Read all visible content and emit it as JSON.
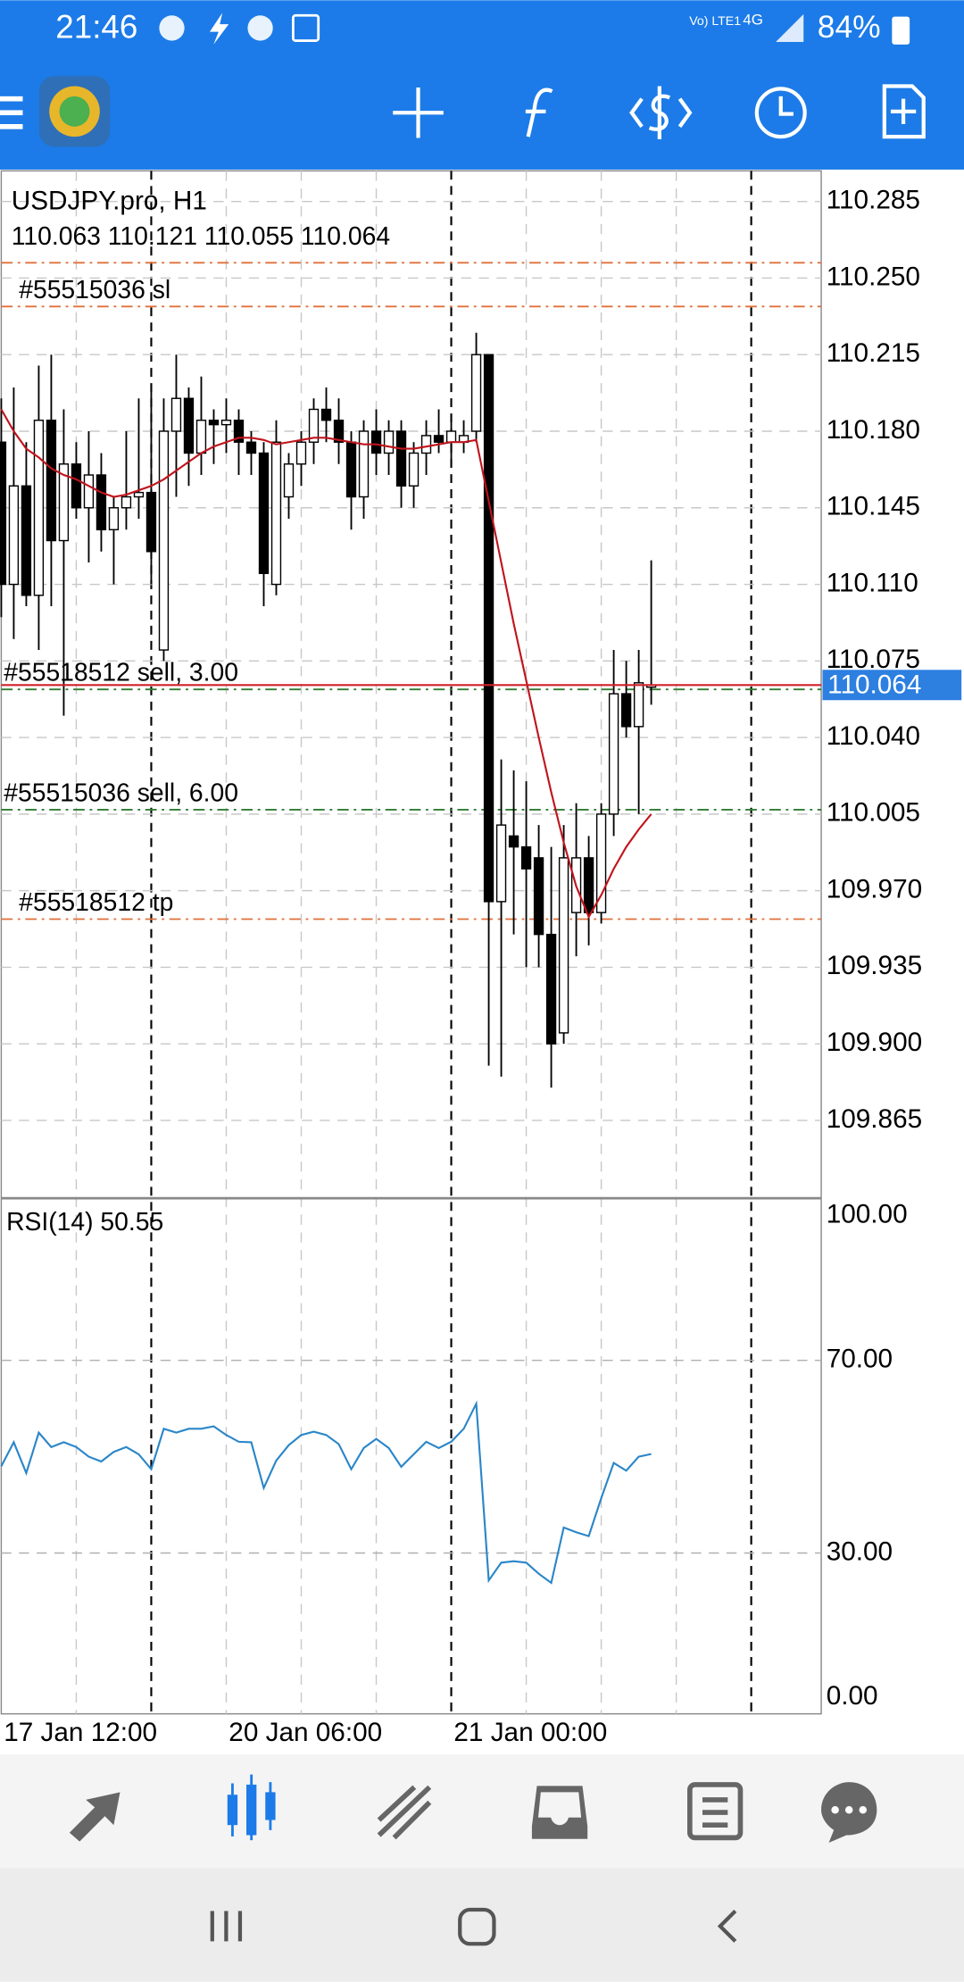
{
  "status_bar": {
    "time": "21:46",
    "carrier": "Vo) LTE1",
    "network": "4G",
    "battery": "84%"
  },
  "chart_data": [
    {
      "type": "candlestick",
      "title": "USDJPY.pro, H1",
      "subtitle": "110.063 110.121 110.055 110.064",
      "open": [
        110.175,
        110.11,
        110.155,
        110.105,
        110.185,
        110.13,
        110.165,
        110.145,
        110.16,
        110.135,
        110.145,
        110.15,
        110.152,
        110.08,
        110.18,
        110.195,
        110.17,
        110.185,
        110.183,
        110.185,
        110.175,
        110.17,
        110.11,
        110.15,
        110.165,
        110.175,
        110.19,
        110.185,
        110.175,
        110.15,
        110.18,
        110.17,
        110.18,
        110.155,
        110.17,
        110.178,
        110.175,
        110.175,
        110.18,
        110.215,
        109.965,
        109.995,
        109.99,
        109.985,
        109.95,
        109.905,
        109.96,
        109.985,
        109.96,
        110.005,
        110.06,
        110.045,
        110.063
      ],
      "high": [
        110.195,
        110.2,
        110.175,
        110.21,
        110.215,
        110.19,
        110.175,
        110.18,
        110.17,
        110.15,
        110.18,
        110.195,
        110.2,
        110.195,
        110.215,
        110.2,
        110.205,
        110.19,
        110.195,
        110.19,
        110.18,
        110.175,
        110.185,
        110.17,
        110.18,
        110.195,
        110.2,
        110.195,
        110.18,
        110.185,
        110.19,
        110.185,
        110.185,
        110.175,
        110.185,
        110.19,
        110.185,
        110.185,
        110.225,
        110.215,
        110.03,
        110.025,
        110.02,
        110.0,
        109.99,
        110.0,
        110.01,
        109.995,
        110.01,
        110.08,
        110.075,
        110.08,
        110.121
      ],
      "low": [
        110.095,
        110.085,
        110.1,
        110.08,
        110.1,
        110.05,
        110.14,
        110.12,
        110.125,
        110.11,
        110.135,
        110.14,
        110.11,
        110.075,
        110.15,
        110.155,
        110.16,
        110.165,
        110.17,
        110.16,
        110.16,
        110.1,
        110.105,
        110.14,
        110.155,
        110.165,
        110.175,
        110.165,
        110.135,
        110.14,
        110.16,
        110.16,
        110.145,
        110.145,
        110.16,
        110.17,
        110.165,
        110.17,
        110.175,
        109.89,
        109.885,
        109.95,
        109.935,
        109.935,
        109.88,
        109.9,
        109.94,
        109.945,
        109.955,
        109.995,
        110.04,
        110.005,
        110.055
      ],
      "close": [
        110.11,
        110.155,
        110.105,
        110.185,
        110.13,
        110.165,
        110.145,
        110.16,
        110.135,
        110.145,
        110.15,
        110.152,
        110.125,
        110.18,
        110.195,
        110.17,
        110.185,
        110.183,
        110.185,
        110.175,
        110.17,
        110.115,
        110.175,
        110.165,
        110.175,
        110.19,
        110.185,
        110.175,
        110.15,
        110.18,
        110.17,
        110.18,
        110.155,
        110.17,
        110.178,
        110.175,
        110.18,
        110.178,
        110.215,
        109.965,
        110.0,
        109.99,
        109.98,
        109.95,
        109.9,
        109.985,
        109.985,
        109.96,
        110.005,
        110.06,
        110.045,
        110.065,
        110.064
      ],
      "colors": {
        "up": "#ffffff",
        "down": "#000000",
        "wick": "#000000"
      },
      "moving_average": {
        "color": "#c0141c",
        "values": [
          110.19,
          110.18,
          110.172,
          110.168,
          110.163,
          110.16,
          110.158,
          110.155,
          110.152,
          110.15,
          110.151,
          110.153,
          110.155,
          110.158,
          110.162,
          110.166,
          110.17,
          110.173,
          110.175,
          110.177,
          110.177,
          110.176,
          110.174,
          110.175,
          110.176,
          110.177,
          110.177,
          110.176,
          110.175,
          110.174,
          110.174,
          110.173,
          110.172,
          110.172,
          110.173,
          110.174,
          110.175,
          110.175,
          110.176,
          110.148,
          110.12,
          110.092,
          110.066,
          110.04,
          110.015,
          109.992,
          109.972,
          109.958,
          109.968,
          109.98,
          109.99,
          109.998,
          110.005
        ]
      },
      "bid": 110.064,
      "bid_color": "#d0202a",
      "order_lines": [
        {
          "value": 110.257,
          "color": "#e0703a"
        },
        {
          "value": 110.237,
          "label": "#55515036 sl",
          "color": "#e0703a"
        },
        {
          "value": 110.062,
          "label": "#55518512 sell, 3.00",
          "color": "#2e7d32"
        },
        {
          "value": 110.007,
          "label": "#55515036 sell, 6.00",
          "color": "#2e7d32"
        },
        {
          "value": 109.957,
          "label": "#55518512 tp",
          "color": "#e0703a"
        }
      ],
      "xlim": [
        0,
        65.6
      ],
      "vgrid": [
        6,
        18,
        24,
        30,
        42,
        48,
        54
      ],
      "period_separators": [
        12,
        36,
        60
      ],
      "ylim": [
        109.83,
        110.299
      ],
      "yticks": [
        110.285,
        {
          "value": 110.25,
          "label": "110.250"
        },
        110.215,
        {
          "value": 110.18,
          "label": "110.180"
        },
        110.145,
        {
          "value": 110.11,
          "label": "110.110"
        },
        110.075,
        {
          "value": 110.04,
          "label": "110.040"
        },
        110.005,
        {
          "value": 109.97,
          "label": "109.970"
        },
        109.935,
        {
          "value": 109.9,
          "label": "109.900"
        },
        109.865
      ],
      "grid": true
    },
    {
      "type": "line",
      "title": "RSI(14) 50.55",
      "color": "#2a86c8",
      "values": [
        48,
        53,
        46.6,
        55,
        52,
        53,
        52,
        50,
        49,
        51,
        52,
        50.5,
        47.4,
        55.8,
        55,
        55.8,
        55.8,
        56.3,
        54.5,
        53.1,
        53,
        43.5,
        49.2,
        52.4,
        54.5,
        55.2,
        54.5,
        52.6,
        47.4,
        51.8,
        53.7,
        51.8,
        47.9,
        50.5,
        53.1,
        51.8,
        53.1,
        55.8,
        61,
        24.3,
        28,
        28.3,
        28,
        25.7,
        23.8,
        35.3,
        34.3,
        33.5,
        41.4,
        48.7,
        47.1,
        50,
        50.55
      ],
      "xlim": [
        0,
        65.6
      ],
      "xticks": [
        {
          "value": 0,
          "label": "17 Jan 12:00"
        },
        {
          "value": 18,
          "label": "20 Jan 06:00"
        },
        {
          "value": 36,
          "label": "21 Jan 00:00"
        }
      ],
      "ylim": [
        -3.4,
        103.4
      ],
      "yticks": [
        {
          "value": 100,
          "label": "100.00"
        },
        {
          "value": 70,
          "label": "70.00"
        },
        {
          "value": 30,
          "label": "30.00"
        },
        {
          "value": 0,
          "label": "0.00"
        }
      ],
      "grid_levels": [
        70,
        30
      ]
    }
  ]
}
